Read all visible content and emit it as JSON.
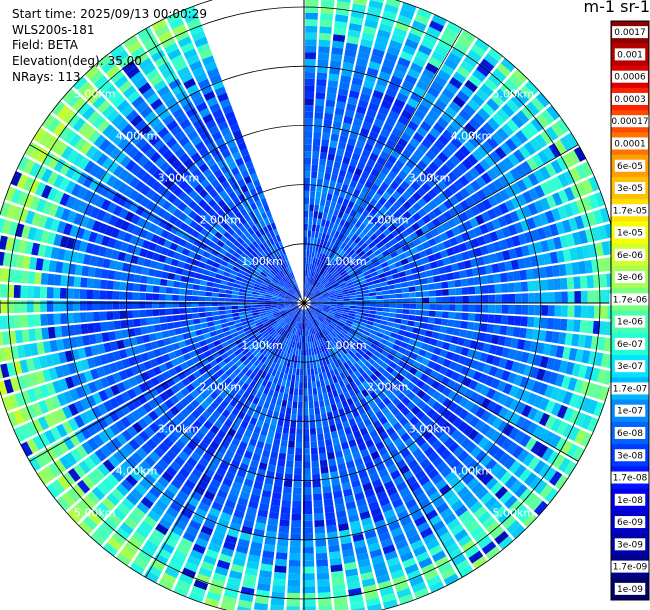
{
  "info": {
    "start_time": "Start time: 2025/09/13 00:00:29",
    "instrument": "WLS200s-181",
    "field": "Field: BETA",
    "elevation": "Elevation(deg): 35.00",
    "nrays": "NRays: 113"
  },
  "colorbar": {
    "title": "m-1 sr-1",
    "labels": [
      "0.0017",
      "0.001",
      "0.0006",
      "0.0003",
      "0.00017",
      "0.0001",
      "6e-05",
      "3e-05",
      "1.7e-05",
      "1e-05",
      "6e-06",
      "3e-06",
      "1.7e-06",
      "1e-06",
      "6e-07",
      "3e-07",
      "1.7e-07",
      "1e-07",
      "6e-08",
      "3e-08",
      "1.7e-08",
      "1e-08",
      "6e-09",
      "3e-09",
      "1.7e-09",
      "1e-09"
    ],
    "colors": [
      "#8b0000",
      "#b40000",
      "#dc0000",
      "#ff2000",
      "#ff4a00",
      "#ff7400",
      "#ff9e00",
      "#ffc000",
      "#ffe000",
      "#f5ff00",
      "#d2ff2a",
      "#a6ff55",
      "#7aff7d",
      "#4dffaa",
      "#22ffd4",
      "#00e4ff",
      "#00b8ff",
      "#008cff",
      "#0064ff",
      "#003cff",
      "#0014ff",
      "#0000e8",
      "#0000c8",
      "#0000a8",
      "#000088",
      "#000068"
    ]
  },
  "chart_data": {
    "type": "heatmap",
    "projection": "polar-ppi",
    "field": "BETA",
    "units": "m-1 sr-1",
    "elevation_deg": 35.0,
    "n_rays": 113,
    "range_rings_km": [
      1.0,
      2.0,
      3.0,
      4.0,
      5.0
    ],
    "range_labels": [
      "1.00km",
      "2.00km",
      "3.00km",
      "4.00km",
      "5.00km"
    ],
    "max_range_km": 5.35,
    "missing_sector_deg": [
      -20,
      0
    ],
    "color_scale": "log",
    "color_limits": [
      1e-09,
      0.0017
    ],
    "grid": true
  }
}
